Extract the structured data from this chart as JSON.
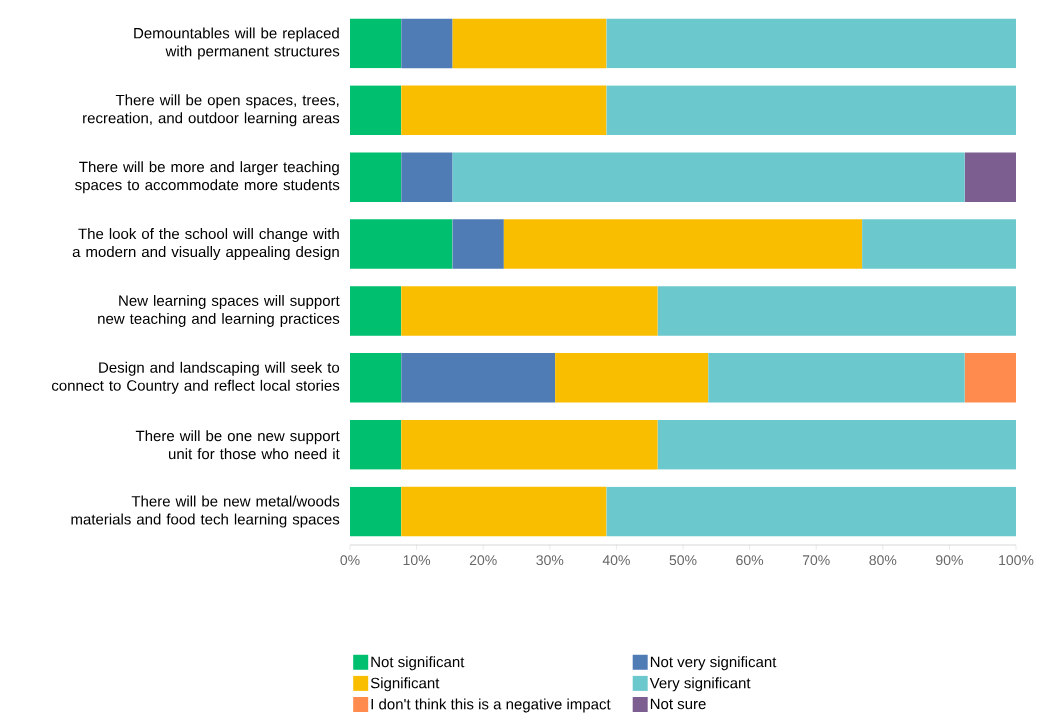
{
  "chart_data": {
    "type": "bar",
    "orientation": "horizontal",
    "stacked": true,
    "legend": "bottom",
    "grid": false,
    "categories": [
      "Demountables will be replaced with permanent structures",
      "There will be open spaces, trees, recreation, and outdoor learning areas",
      "There will be more and larger teaching spaces to accommodate more students",
      "The look of the school will change with a modern and visually appealing design",
      "New learning spaces will support new teaching and learning practices",
      "Design and landscaping will seek to connect to Country and reflect local stories",
      "There will be one new support unit for those who need it",
      "There will be new metal/woods materials and food tech learning spaces"
    ],
    "series": [
      {
        "name": "Not significant",
        "color": "#00bf6f",
        "values": [
          7.7,
          7.7,
          7.7,
          15.4,
          7.7,
          7.7,
          7.7,
          7.7
        ]
      },
      {
        "name": "Not very significant",
        "color": "#507cb6",
        "values": [
          7.7,
          null,
          7.7,
          7.7,
          null,
          23.1,
          null,
          null
        ]
      },
      {
        "name": "Significant",
        "color": "#f9be00",
        "values": [
          23.1,
          30.8,
          null,
          53.8,
          38.5,
          23.0,
          38.5,
          30.8
        ]
      },
      {
        "name": "Very significant",
        "color": "#6bc8cd",
        "values": [
          61.5,
          61.5,
          76.9,
          23.1,
          53.8,
          38.5,
          53.8,
          61.5
        ]
      },
      {
        "name": "I don't think this is a negative impact",
        "color": "#ff8b4f",
        "values": [
          null,
          null,
          null,
          null,
          null,
          7.7,
          null,
          null
        ]
      },
      {
        "name": "Not sure",
        "color": "#7d5e90",
        "values": [
          null,
          null,
          7.7,
          null,
          null,
          null,
          null,
          null
        ]
      }
    ],
    "xlim": [
      0,
      100
    ],
    "xticks": [
      {
        "value": 0,
        "label": "0%"
      },
      {
        "value": 10,
        "label": "10%"
      },
      {
        "value": 20,
        "label": "20%"
      },
      {
        "value": 30,
        "label": "30%"
      },
      {
        "value": 40,
        "label": "40%"
      },
      {
        "value": 50,
        "label": "50%"
      },
      {
        "value": 60,
        "label": "60%"
      },
      {
        "value": 70,
        "label": "70%"
      },
      {
        "value": 80,
        "label": "80%"
      },
      {
        "value": 90,
        "label": "90%"
      },
      {
        "value": 100,
        "label": "100%"
      }
    ]
  }
}
